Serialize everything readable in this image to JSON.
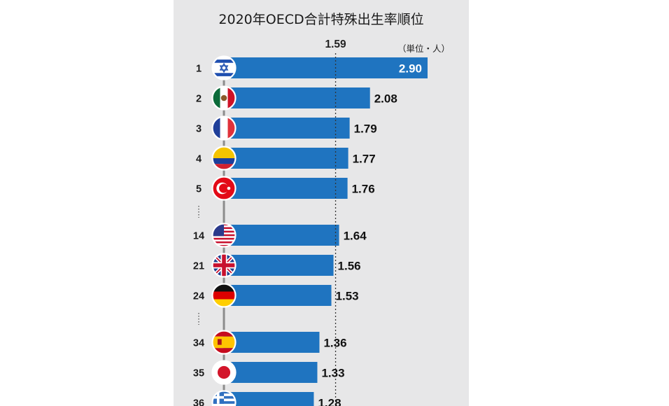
{
  "chart_data": {
    "type": "bar",
    "orientation": "horizontal",
    "title": "2020年OECD合計特殊出生率順位",
    "unit_label": "（単位・人）",
    "reference_line": {
      "value": 1.59,
      "label": "1.59",
      "style": "dotted"
    },
    "categories": [
      "1",
      "2",
      "3",
      "4",
      "5",
      "14",
      "21",
      "24",
      "34",
      "35",
      "36"
    ],
    "ranks": [
      1,
      2,
      3,
      4,
      5,
      14,
      21,
      24,
      34,
      35,
      36
    ],
    "values": [
      2.9,
      2.08,
      1.79,
      1.77,
      1.76,
      1.64,
      1.56,
      1.53,
      1.36,
      1.33,
      1.28
    ],
    "value_labels": [
      "2.90",
      "2.08",
      "1.79",
      "1.77",
      "1.76",
      "1.64",
      "1.56",
      "1.53",
      "1.36",
      "1.33",
      "1.28"
    ],
    "flag_icons": [
      "israel-flag-icon",
      "mexico-flag-icon",
      "france-flag-icon",
      "colombia-flag-icon",
      "turkey-flag-icon",
      "usa-flag-icon",
      "uk-flag-icon",
      "germany-flag-icon",
      "spain-flag-icon",
      "japan-flag-icon",
      "greece-flag-icon"
    ],
    "gaps_after_rank": [
      5,
      24
    ],
    "xlim": [
      0,
      2.9
    ],
    "grid": false,
    "colors": {
      "bar": "#1f74c0",
      "bar_dark_edge": "#1a5f9f",
      "value_inside": "#ffffff",
      "value_outside": "#111111",
      "background": "#e7e7e8"
    }
  }
}
